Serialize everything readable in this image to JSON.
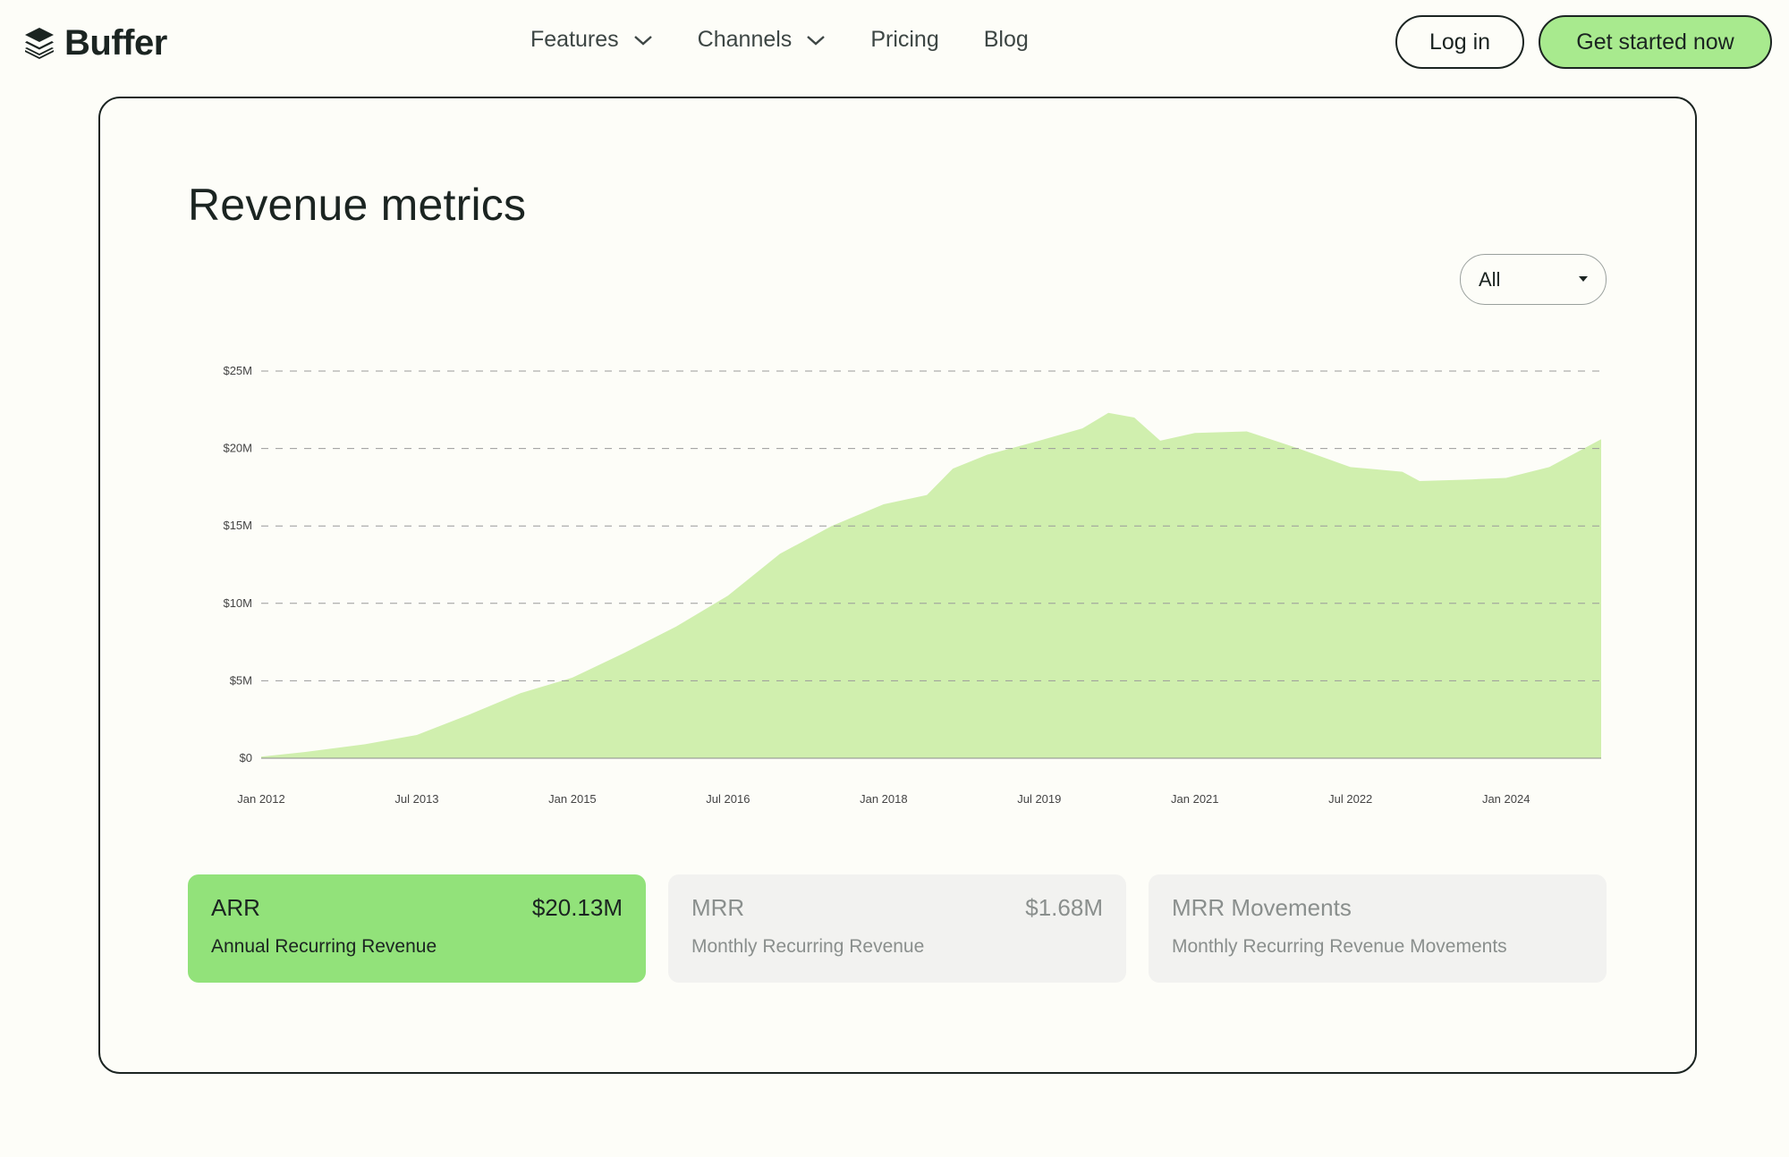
{
  "brand": {
    "name": "Buffer"
  },
  "nav": {
    "items": [
      {
        "label": "Features",
        "has_dropdown": true
      },
      {
        "label": "Channels",
        "has_dropdown": true
      },
      {
        "label": "Pricing",
        "has_dropdown": false
      },
      {
        "label": "Blog",
        "has_dropdown": false
      }
    ]
  },
  "header": {
    "login_label": "Log in",
    "cta_label": "Get started now"
  },
  "colors": {
    "accent": "#92e27a",
    "cta": "#a8ea8e",
    "area_fill": "#d0efae",
    "ink": "#1b2421"
  },
  "main": {
    "title": "Revenue metrics",
    "range_select": {
      "value": "All"
    }
  },
  "chart_data": {
    "type": "area",
    "title": "",
    "xlabel": "",
    "ylabel": "",
    "grid": true,
    "y_tick_labels": [
      "$0",
      "$5M",
      "$10M",
      "$15M",
      "$20M",
      "$25M"
    ],
    "y_ticks": [
      0,
      5,
      10,
      15,
      20,
      25
    ],
    "ylim": [
      0,
      25
    ],
    "x_tick_labels": [
      "Jan 2012",
      "Jul 2013",
      "Jan 2015",
      "Jul 2016",
      "Jan 2018",
      "Jul 2019",
      "Jan 2021",
      "Jul 2022",
      "Jan 2024"
    ],
    "x_ticks": [
      "2012-01",
      "2013-07",
      "2015-01",
      "2016-07",
      "2018-01",
      "2019-07",
      "2021-01",
      "2022-07",
      "2024-01"
    ],
    "xlim": [
      "2012-01",
      "2024-12"
    ],
    "series": [
      {
        "points": [
          [
            "2012-01",
            0.1
          ],
          [
            "2012-06",
            0.4
          ],
          [
            "2013-01",
            0.9
          ],
          [
            "2013-07",
            1.5
          ],
          [
            "2014-01",
            2.8
          ],
          [
            "2014-07",
            4.2
          ],
          [
            "2015-01",
            5.2
          ],
          [
            "2015-07",
            6.8
          ],
          [
            "2016-01",
            8.5
          ],
          [
            "2016-07",
            10.5
          ],
          [
            "2017-01",
            13.2
          ],
          [
            "2017-07",
            15.0
          ],
          [
            "2018-01",
            16.4
          ],
          [
            "2018-06",
            17.0
          ],
          [
            "2018-09",
            18.7
          ],
          [
            "2019-01",
            19.6
          ],
          [
            "2019-07",
            20.5
          ],
          [
            "2019-12",
            21.3
          ],
          [
            "2020-03",
            22.3
          ],
          [
            "2020-06",
            22.0
          ],
          [
            "2020-09",
            20.5
          ],
          [
            "2021-01",
            21.0
          ],
          [
            "2021-07",
            21.1
          ],
          [
            "2022-01",
            20.0
          ],
          [
            "2022-07",
            18.8
          ],
          [
            "2023-01",
            18.5
          ],
          [
            "2023-03",
            17.9
          ],
          [
            "2023-09",
            18.0
          ],
          [
            "2024-01",
            18.1
          ],
          [
            "2024-06",
            18.8
          ],
          [
            "2024-12",
            20.6
          ]
        ]
      }
    ]
  },
  "metrics": [
    {
      "name": "ARR",
      "value": "$20.13M",
      "desc": "Annual Recurring Revenue",
      "active": true
    },
    {
      "name": "MRR",
      "value": "$1.68M",
      "desc": "Monthly Recurring Revenue",
      "active": false
    },
    {
      "name": "MRR Movements",
      "value": "",
      "desc": "Monthly Recurring Revenue Movements",
      "active": false
    }
  ]
}
